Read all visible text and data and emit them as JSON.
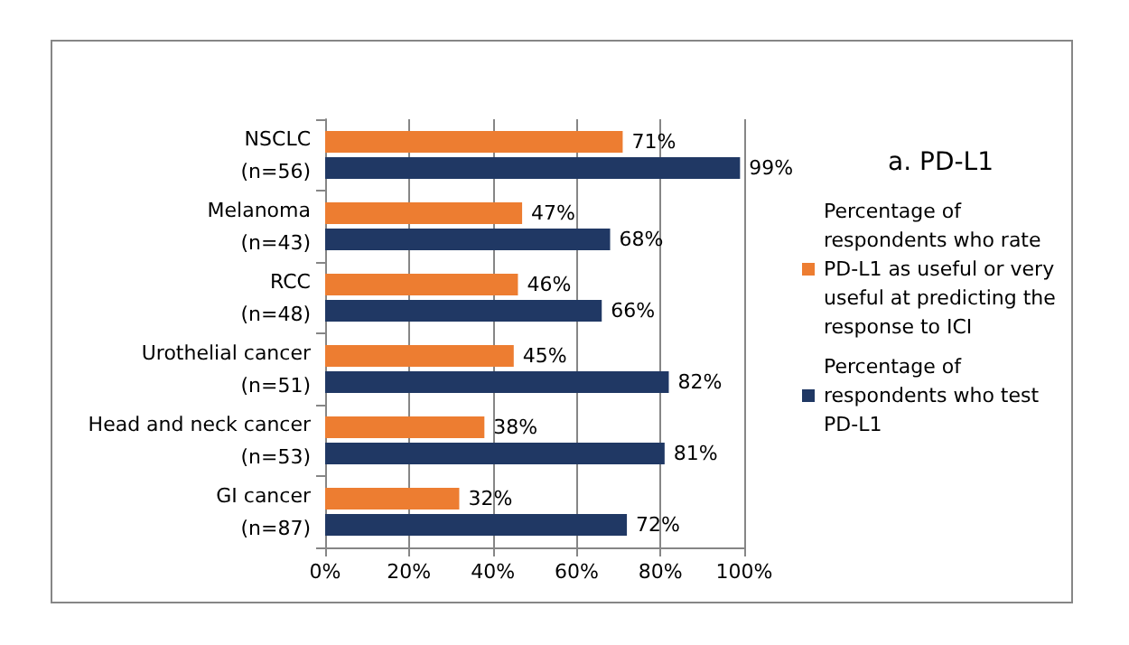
{
  "chart_data": {
    "type": "bar",
    "orientation": "horizontal",
    "title": "a. PD-L1",
    "categories": [
      "NSCLC\n(n=56)",
      "Melanoma\n(n=43)",
      "RCC\n(n=48)",
      "Urothelial cancer\n(n=51)",
      "Head and neck cancer\n(n=53)",
      "GI cancer\n(n=87)"
    ],
    "series": [
      {
        "name": "Percentage of respondents who rate PD-L1 as useful or very useful at predicting the response to ICI",
        "color": "#ed7d31",
        "values": [
          71,
          47,
          46,
          45,
          38,
          32
        ],
        "value_labels": [
          "71%",
          "47%",
          "46%",
          "45%",
          "38%",
          "32%"
        ]
      },
      {
        "name": "Percentage of respondents who test PD-L1",
        "color": "#203864",
        "values": [
          99,
          68,
          66,
          82,
          81,
          72
        ],
        "value_labels": [
          "99%",
          "68%",
          "66%",
          "82%",
          "81%",
          "72%"
        ]
      }
    ],
    "xlim": [
      0,
      100
    ],
    "xticks": [
      {
        "value": 0,
        "label": "0%"
      },
      {
        "value": 20,
        "label": "20%"
      },
      {
        "value": 40,
        "label": "40%"
      },
      {
        "value": 60,
        "label": "60%"
      },
      {
        "value": 80,
        "label": "80%"
      },
      {
        "value": 100,
        "label": "100%"
      }
    ],
    "grid": "x",
    "legend": "right"
  }
}
